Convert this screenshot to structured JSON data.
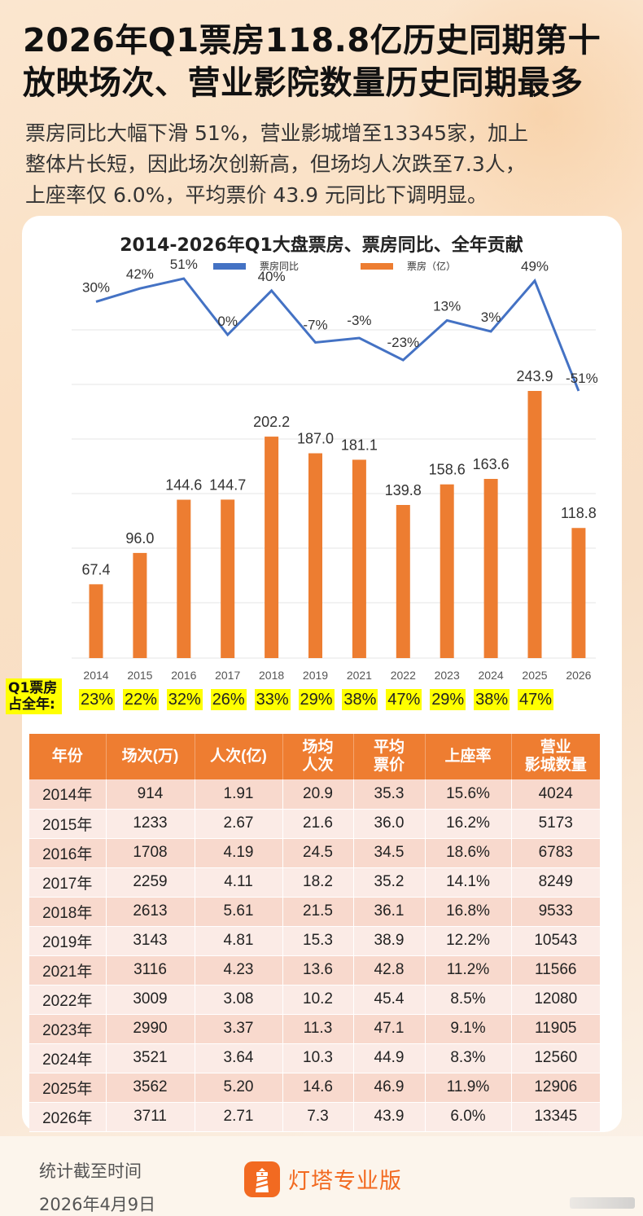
{
  "headline": {
    "line1": "2026年Q1票房118.8亿历史同期第十",
    "line2": "放映场次、营业影院数量历史同期最多"
  },
  "subtext": {
    "line1": "票房同比大幅下滑  51%，营业影城增至13345家，加上",
    "line2": "整体片长短，因此场次创新高，但场均人次跌至7.3人，",
    "line3": "上座率仅 6.0%，平均票价 43.9 元同比下调明显。"
  },
  "colors": {
    "bar": "#ed7d31",
    "line": "#4472c4",
    "highlight": "#ffff00",
    "table_header": "#ee7d31",
    "brand": "#f26a21"
  },
  "chart_data": {
    "type": "bar",
    "title": "2014-2026年Q1大盘票房、票房同比、全年贡献",
    "categories": [
      "2014",
      "2015",
      "2016",
      "2017",
      "2018",
      "2019",
      "2021",
      "2022",
      "2023",
      "2024",
      "2025",
      "2026"
    ],
    "series": [
      {
        "name": "票房同比",
        "type": "line",
        "unit": "%",
        "values": [
          30,
          42,
          51,
          0,
          40,
          -7,
          -3,
          -23,
          13,
          3,
          49,
          -51
        ],
        "labels": [
          "30%",
          "42%",
          "51%",
          "0%",
          "40%",
          "-7%",
          "-3%",
          "-23%",
          "13%",
          "3%",
          "49%",
          "-51%"
        ]
      },
      {
        "name": "票房（亿）",
        "type": "bar",
        "unit": "亿",
        "values": [
          67.4,
          96.0,
          144.6,
          144.7,
          202.2,
          187.0,
          181.1,
          139.8,
          158.6,
          163.6,
          243.9,
          118.8
        ],
        "labels": [
          "67.4",
          "96.0",
          "144.6",
          "144.7",
          "202.2",
          "187.0",
          "181.1",
          "139.8",
          "158.6",
          "163.6",
          "243.9",
          "118.8"
        ]
      }
    ],
    "bar_ylim": [
      0,
      243.9
    ],
    "line_ylim": [
      -51,
      51
    ],
    "legend": [
      "票房同比",
      "票房（亿）"
    ],
    "legend_position": "top",
    "grid": true,
    "xlabel": "",
    "ylabel": "",
    "annual_share": {
      "label_line1": "Q1票房",
      "label_line2": "占全年:",
      "values": [
        "23%",
        "22%",
        "32%",
        "26%",
        "33%",
        "29%",
        "38%",
        "47%",
        "29%",
        "38%",
        "47%"
      ]
    }
  },
  "table": {
    "headers": [
      [
        "年份"
      ],
      [
        "场次(万)"
      ],
      [
        "人次(亿)"
      ],
      [
        "场均",
        "人次"
      ],
      [
        "平均",
        "票价"
      ],
      [
        "上座率"
      ],
      [
        "营业",
        "影城数量"
      ]
    ],
    "rows": [
      [
        "2014年",
        "914",
        "1.91",
        "20.9",
        "35.3",
        "15.6%",
        "4024"
      ],
      [
        "2015年",
        "1233",
        "2.67",
        "21.6",
        "36.0",
        "16.2%",
        "5173"
      ],
      [
        "2016年",
        "1708",
        "4.19",
        "24.5",
        "34.5",
        "18.6%",
        "6783"
      ],
      [
        "2017年",
        "2259",
        "4.11",
        "18.2",
        "35.2",
        "14.1%",
        "8249"
      ],
      [
        "2018年",
        "2613",
        "5.61",
        "21.5",
        "36.1",
        "16.8%",
        "9533"
      ],
      [
        "2019年",
        "3143",
        "4.81",
        "15.3",
        "38.9",
        "12.2%",
        "10543"
      ],
      [
        "2021年",
        "3116",
        "4.23",
        "13.6",
        "42.8",
        "11.2%",
        "11566"
      ],
      [
        "2022年",
        "3009",
        "3.08",
        "10.2",
        "45.4",
        "8.5%",
        "12080"
      ],
      [
        "2023年",
        "2990",
        "3.37",
        "11.3",
        "47.1",
        "9.1%",
        "11905"
      ],
      [
        "2024年",
        "3521",
        "3.64",
        "10.3",
        "44.9",
        "8.3%",
        "12560"
      ],
      [
        "2025年",
        "3562",
        "5.20",
        "14.6",
        "46.9",
        "11.9%",
        "12906"
      ],
      [
        "2026年",
        "3711",
        "2.71",
        "7.3",
        "43.9",
        "6.0%",
        "13345"
      ]
    ]
  },
  "footer": {
    "stat_label": "统计截至时间",
    "stat_date": "2026年4月9日",
    "brand_name": "灯塔专业版",
    "brand_icon": "lighthouse-icon"
  }
}
